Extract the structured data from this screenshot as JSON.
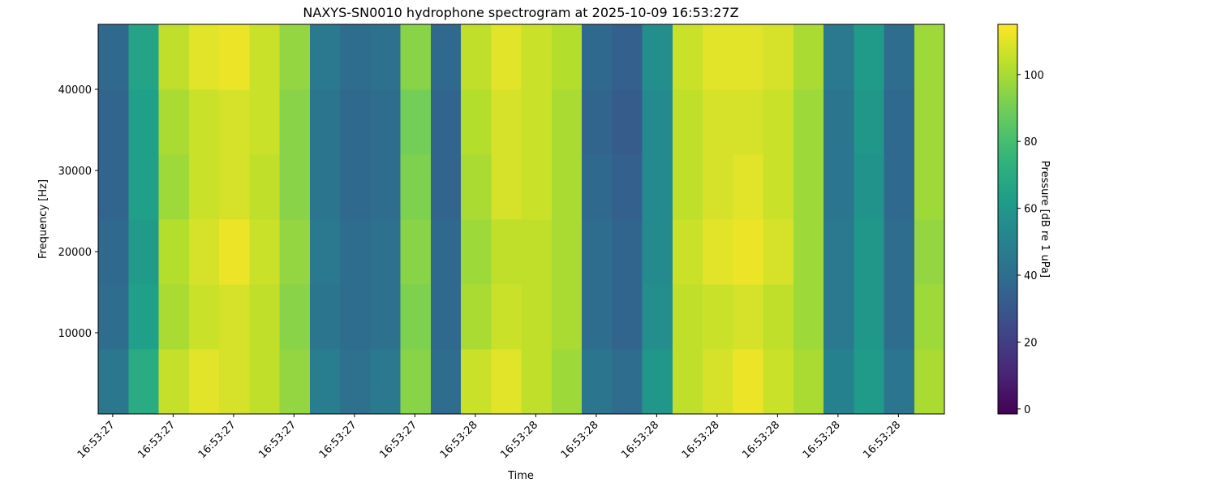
{
  "chart_data": {
    "type": "heatmap",
    "title": "NAXYS-SN0010 hydrophone spectrogram at 2025-10-09 16:53:27Z",
    "x_label": "Time",
    "y_label": "Frequency [Hz]",
    "colorbar_label": "Pressure [dB re 1 uPa]",
    "colormap": "viridis",
    "xlim": [
      27.376,
      28.776
    ],
    "ylim": [
      0,
      48000
    ],
    "clim": [
      -1.5,
      115
    ],
    "xticks": [
      {
        "value": 27.4,
        "label": "16:53:27"
      },
      {
        "value": 27.5,
        "label": "16:53:27"
      },
      {
        "value": 27.6,
        "label": "16:53:27"
      },
      {
        "value": 27.7,
        "label": "16:53:27"
      },
      {
        "value": 27.8,
        "label": "16:53:27"
      },
      {
        "value": 27.9,
        "label": "16:53:27"
      },
      {
        "value": 28.0,
        "label": "16:53:28"
      },
      {
        "value": 28.1,
        "label": "16:53:28"
      },
      {
        "value": 28.2,
        "label": "16:53:28"
      },
      {
        "value": 28.3,
        "label": "16:53:28"
      },
      {
        "value": 28.4,
        "label": "16:53:28"
      },
      {
        "value": 28.5,
        "label": "16:53:28"
      },
      {
        "value": 28.6,
        "label": "16:53:28"
      },
      {
        "value": 28.7,
        "label": "16:53:28"
      }
    ],
    "yticks": [
      10000,
      20000,
      30000,
      40000
    ],
    "cticks": [
      0,
      20,
      40,
      60,
      80,
      100
    ],
    "xbins": [
      27.376,
      27.426,
      27.476,
      27.526,
      27.576,
      27.626,
      27.676,
      27.726,
      27.776,
      27.826,
      27.876,
      27.926,
      27.976,
      28.026,
      28.076,
      28.126,
      28.176,
      28.226,
      28.276,
      28.326,
      28.376,
      28.426,
      28.476,
      28.526,
      28.576,
      28.626,
      28.676,
      28.726,
      28.776
    ],
    "ybins": [
      0,
      8000,
      16000,
      24000,
      32000,
      40000,
      48000
    ],
    "z": [
      [
        45,
        70,
        105,
        110,
        108,
        104,
        96,
        48,
        42,
        46,
        94,
        40,
        106,
        110,
        104,
        98,
        44,
        40,
        60,
        104,
        108,
        112,
        106,
        100,
        50,
        62,
        44,
        100
      ],
      [
        40,
        64,
        100,
        106,
        108,
        104,
        94,
        44,
        40,
        42,
        92,
        38,
        100,
        106,
        104,
        100,
        40,
        36,
        56,
        104,
        106,
        108,
        104,
        98,
        46,
        60,
        40,
        98
      ],
      [
        38,
        62,
        102,
        108,
        112,
        106,
        96,
        46,
        40,
        42,
        94,
        38,
        98,
        104,
        104,
        100,
        40,
        36,
        54,
        106,
        110,
        112,
        108,
        98,
        46,
        60,
        40,
        96
      ],
      [
        36,
        64,
        98,
        106,
        108,
        104,
        94,
        44,
        38,
        40,
        92,
        36,
        100,
        108,
        106,
        100,
        38,
        34,
        54,
        104,
        108,
        110,
        106,
        98,
        44,
        58,
        38,
        98
      ],
      [
        36,
        64,
        100,
        106,
        108,
        106,
        94,
        44,
        38,
        40,
        90,
        36,
        102,
        108,
        106,
        100,
        36,
        32,
        54,
        104,
        108,
        108,
        106,
        98,
        44,
        60,
        38,
        98
      ],
      [
        38,
        66,
        104,
        110,
        112,
        106,
        96,
        46,
        40,
        42,
        94,
        38,
        104,
        110,
        106,
        102,
        38,
        34,
        56,
        106,
        110,
        110,
        108,
        100,
        46,
        62,
        40,
        98
      ]
    ]
  }
}
